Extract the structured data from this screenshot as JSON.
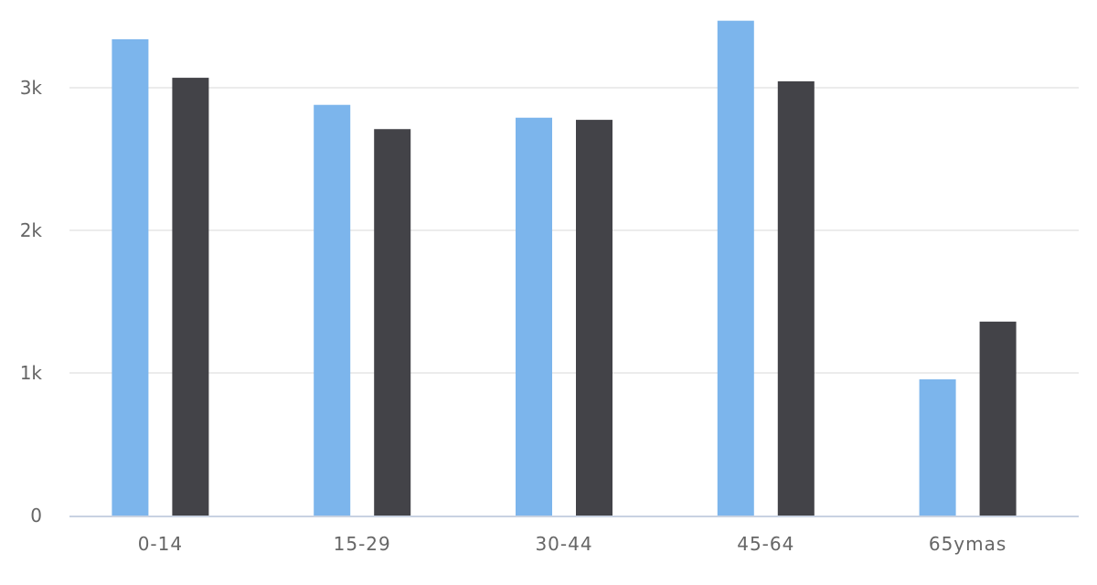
{
  "chart_data": {
    "type": "bar",
    "title": "",
    "xlabel": "",
    "ylabel": "",
    "categories": [
      "0-14",
      "15-29",
      "30-44",
      "45-64",
      "65ymas"
    ],
    "series": [
      {
        "values": [
          3340,
          2880,
          2790,
          3470,
          955
        ],
        "color": "#7cb5ec"
      },
      {
        "values": [
          3070,
          2710,
          2775,
          3045,
          1360
        ],
        "color": "#434348"
      }
    ],
    "ylim": [
      0,
      3500
    ],
    "yticks": [
      0,
      1000,
      2000,
      3000
    ],
    "ytick_labels": [
      "0",
      "1k",
      "2k",
      "3k"
    ],
    "grid": true,
    "legend": "none"
  }
}
